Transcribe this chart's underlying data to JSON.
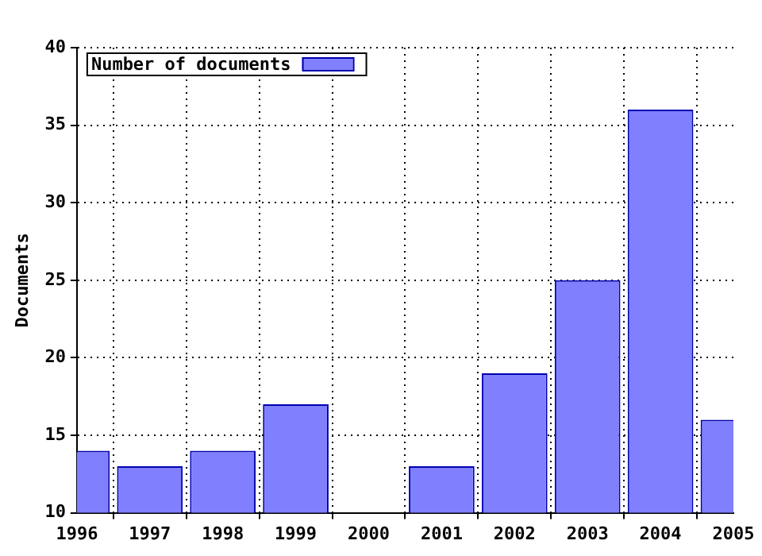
{
  "chart_data": {
    "type": "bar",
    "ylabel": "Documents",
    "x": [
      1996,
      1997,
      1998,
      1999,
      2000,
      2001,
      2002,
      2003,
      2004,
      2005
    ],
    "series": [
      {
        "name": "Number of documents",
        "color": "#8080ff",
        "values": [
          14,
          13,
          14,
          17,
          null,
          13,
          19,
          25,
          36,
          16
        ]
      }
    ],
    "xlim": [
      1996,
      2005
    ],
    "xticks": [
      1996,
      1997,
      1998,
      1999,
      2000,
      2001,
      2002,
      2003,
      2004,
      2005
    ],
    "ylim": [
      10,
      40
    ],
    "yticks": [
      10,
      15,
      20,
      25,
      30,
      35,
      40
    ],
    "grid": true,
    "legend": "top left"
  }
}
